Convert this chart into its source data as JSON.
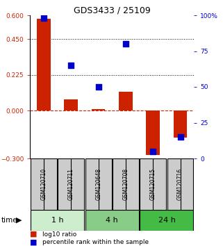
{
  "title": "GDS3433 / 25109",
  "samples": [
    "GSM120710",
    "GSM120711",
    "GSM120648",
    "GSM120708",
    "GSM120715",
    "GSM120716"
  ],
  "log10_ratio": [
    0.58,
    0.07,
    0.01,
    0.12,
    -0.28,
    -0.17
  ],
  "percentile_rank": [
    98,
    65,
    50,
    80,
    5,
    15
  ],
  "groups": [
    {
      "label": "1 h",
      "indices": [
        0,
        1
      ]
    },
    {
      "label": "4 h",
      "indices": [
        2,
        3
      ]
    },
    {
      "label": "24 h",
      "indices": [
        4,
        5
      ]
    }
  ],
  "group_colors": [
    "#cceecc",
    "#88cc88",
    "#44bb44"
  ],
  "ylim_left": [
    -0.3,
    0.6
  ],
  "ylim_right": [
    0,
    100
  ],
  "yticks_left": [
    -0.3,
    0,
    0.225,
    0.45,
    0.6
  ],
  "yticks_right": [
    0,
    25,
    50,
    75,
    100
  ],
  "ytick_labels_right": [
    "0",
    "25",
    "50",
    "75",
    "100%"
  ],
  "hlines": [
    0.225,
    0.45
  ],
  "bar_color": "#cc2200",
  "dot_color": "#0000cc",
  "bar_width": 0.5,
  "dot_size": 35,
  "label_bg": "#cccccc"
}
